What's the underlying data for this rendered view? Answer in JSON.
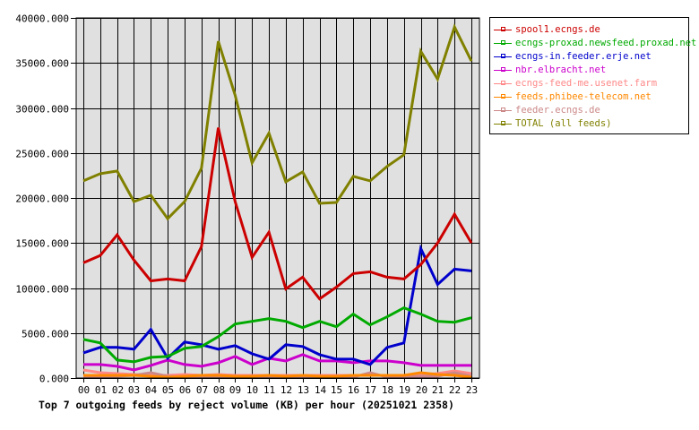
{
  "chart_data": {
    "type": "line",
    "title": "Top 7 outgoing feeds by reject volume (KB) per hour (20251021 2358)",
    "xlabel": "",
    "ylabel": "",
    "ylim": [
      0,
      40000
    ],
    "grid": true,
    "legend_position": "right",
    "y_ticks": [
      "0.000",
      "5000.000",
      "10000.000",
      "15000.000",
      "20000.000",
      "25000.000",
      "30000.000",
      "35000.000",
      "40000.000"
    ],
    "categories": [
      "00",
      "01",
      "02",
      "03",
      "04",
      "05",
      "06",
      "07",
      "08",
      "09",
      "10",
      "11",
      "12",
      "13",
      "14",
      "15",
      "16",
      "17",
      "18",
      "19",
      "20",
      "21",
      "22",
      "23"
    ],
    "series": [
      {
        "name": "spool1.ecngs.de",
        "color": "#cc0000",
        "values": [
          12800,
          13600,
          15900,
          13100,
          10800,
          11000,
          10800,
          14600,
          27800,
          19600,
          13400,
          16200,
          9900,
          11200,
          8800,
          10100,
          11600,
          11800,
          11200,
          11000,
          12600,
          15000,
          18200,
          15000
        ]
      },
      {
        "name": "ecngs-proxad.newsfeed.proxad.net",
        "color": "#00aa00",
        "values": [
          4300,
          3900,
          2000,
          1800,
          2300,
          2400,
          3300,
          3500,
          4600,
          6000,
          6300,
          6600,
          6300,
          5600,
          6300,
          5700,
          7100,
          5900,
          6800,
          7800,
          7100,
          6300,
          6200,
          6700
        ]
      },
      {
        "name": "ecngs-in.feeder.erje.net",
        "color": "#0000cc",
        "values": [
          2800,
          3400,
          3400,
          3200,
          5400,
          2200,
          4000,
          3700,
          3200,
          3600,
          2700,
          2100,
          3700,
          3500,
          2600,
          2100,
          2100,
          1500,
          3400,
          3900,
          14400,
          10400,
          12100,
          11900
        ]
      },
      {
        "name": "nbr.elbracht.net",
        "color": "#cc00cc",
        "values": [
          1500,
          1500,
          1300,
          900,
          1400,
          2000,
          1500,
          1300,
          1700,
          2400,
          1500,
          2200,
          1900,
          2600,
          1900,
          1900,
          1700,
          1900,
          1900,
          1700,
          1400,
          1400,
          1400,
          1400
        ]
      },
      {
        "name": "ecngs-feed-me.usenet.farm",
        "color": "#ff8888",
        "values": [
          900,
          600,
          500,
          400,
          300,
          300,
          400,
          300,
          400,
          300,
          300,
          300,
          300,
          300,
          300,
          300,
          300,
          300,
          300,
          300,
          400,
          500,
          800,
          500
        ]
      },
      {
        "name": "feeds.phibee-telecom.net",
        "color": "#ff8800",
        "values": [
          300,
          300,
          300,
          300,
          200,
          100,
          200,
          300,
          300,
          200,
          200,
          300,
          200,
          300,
          200,
          200,
          300,
          300,
          300,
          300,
          600,
          400,
          300,
          100
        ]
      },
      {
        "name": "feeder.ecngs.de",
        "color": "#cc8888",
        "values": [
          200,
          200,
          200,
          300,
          600,
          200,
          100,
          100,
          100,
          100,
          100,
          100,
          100,
          100,
          100,
          100,
          100,
          600,
          100,
          100,
          200,
          200,
          600,
          200
        ]
      },
      {
        "name": "TOTAL (all feeds)",
        "color": "#808000",
        "values": [
          21900,
          22700,
          23000,
          19600,
          20300,
          17700,
          19600,
          23300,
          37400,
          31400,
          23900,
          27200,
          21800,
          22900,
          19400,
          19500,
          22400,
          21900,
          23500,
          24800,
          36300,
          33200,
          39000,
          35200
        ]
      }
    ]
  },
  "caption": "Top 7 outgoing feeds by reject volume (KB) per hour (20251021 2358)",
  "colors": {
    "plot_background": "#e0e0e0",
    "grid": "#000000"
  }
}
